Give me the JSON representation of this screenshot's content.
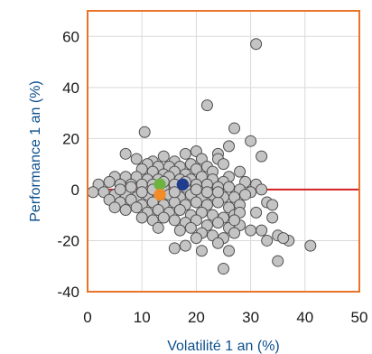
{
  "chart_data": {
    "type": "scatter",
    "xlabel": "Volatilité 1 an (%)",
    "ylabel": "Performance 1 an (%)",
    "xlim": [
      0,
      50
    ],
    "ylim": [
      -40,
      70
    ],
    "x_ticks": [
      "0",
      "10",
      "20",
      "30",
      "40",
      "50"
    ],
    "y_ticks": [
      "-40",
      "-20",
      "0",
      "20",
      "40",
      "60"
    ],
    "grid": true,
    "frame_color": "#e8742a",
    "zero_line_color": "#d22020",
    "series": [
      {
        "color": "#c4c4c4",
        "points": [
          [
            31,
            57
          ],
          [
            22,
            33
          ],
          [
            27,
            24
          ],
          [
            10.5,
            22.5
          ],
          [
            30,
            19
          ],
          [
            20,
            15
          ],
          [
            24,
            14
          ],
          [
            26,
            17
          ],
          [
            18,
            14
          ],
          [
            7,
            14
          ],
          [
            14,
            13
          ],
          [
            9,
            12
          ],
          [
            12,
            11
          ],
          [
            16,
            11
          ],
          [
            21,
            12
          ],
          [
            24,
            12
          ],
          [
            25,
            10
          ],
          [
            32,
            13
          ],
          [
            11,
            10
          ],
          [
            13,
            9
          ],
          [
            15,
            9
          ],
          [
            17,
            9
          ],
          [
            19,
            10
          ],
          [
            22,
            9
          ],
          [
            28,
            7
          ],
          [
            10,
            8
          ],
          [
            12,
            7
          ],
          [
            14,
            6
          ],
          [
            16,
            7
          ],
          [
            18,
            6
          ],
          [
            20,
            8
          ],
          [
            23,
            7
          ],
          [
            26,
            5
          ],
          [
            5,
            5
          ],
          [
            7,
            5
          ],
          [
            9,
            5
          ],
          [
            11,
            4
          ],
          [
            13,
            4
          ],
          [
            15,
            5
          ],
          [
            17,
            4
          ],
          [
            19,
            4
          ],
          [
            21,
            5
          ],
          [
            23,
            4
          ],
          [
            25,
            3
          ],
          [
            29,
            3
          ],
          [
            31,
            2
          ],
          [
            2,
            2
          ],
          [
            4,
            3
          ],
          [
            6,
            2
          ],
          [
            8,
            2
          ],
          [
            10,
            2
          ],
          [
            12,
            2
          ],
          [
            14,
            1
          ],
          [
            16,
            2
          ],
          [
            18,
            1
          ],
          [
            20,
            2
          ],
          [
            22,
            2
          ],
          [
            24,
            1
          ],
          [
            26,
            1
          ],
          [
            28,
            0
          ],
          [
            30,
            -1
          ],
          [
            32,
            0
          ],
          [
            1,
            -1
          ],
          [
            3,
            -1
          ],
          [
            5,
            -2
          ],
          [
            7,
            -2
          ],
          [
            9,
            -3
          ],
          [
            11,
            -2
          ],
          [
            13,
            -3
          ],
          [
            15,
            -2
          ],
          [
            17,
            -3
          ],
          [
            19,
            -2
          ],
          [
            21,
            -3
          ],
          [
            23,
            -2
          ],
          [
            25,
            -3
          ],
          [
            27,
            -3
          ],
          [
            29,
            -2
          ],
          [
            4,
            -4
          ],
          [
            6,
            -5
          ],
          [
            8,
            -4
          ],
          [
            10,
            -6
          ],
          [
            12,
            -5
          ],
          [
            14,
            -6
          ],
          [
            16,
            -5
          ],
          [
            18,
            -6
          ],
          [
            20,
            -5
          ],
          [
            22,
            -6
          ],
          [
            24,
            -5
          ],
          [
            26,
            -7
          ],
          [
            28,
            -6
          ],
          [
            33,
            -5
          ],
          [
            34,
            -6
          ],
          [
            5,
            -7
          ],
          [
            7,
            -8
          ],
          [
            9,
            -7
          ],
          [
            11,
            -9
          ],
          [
            13,
            -8
          ],
          [
            15,
            -9
          ],
          [
            17,
            -8
          ],
          [
            19,
            -10
          ],
          [
            21,
            -9
          ],
          [
            23,
            -10
          ],
          [
            25,
            -11
          ],
          [
            27,
            -10
          ],
          [
            31,
            -9
          ],
          [
            10,
            -11
          ],
          [
            12,
            -12
          ],
          [
            14,
            -11
          ],
          [
            16,
            -12
          ],
          [
            18,
            -13
          ],
          [
            20,
            -12
          ],
          [
            22,
            -14
          ],
          [
            24,
            -13
          ],
          [
            26,
            -15
          ],
          [
            28,
            -14
          ],
          [
            30,
            -16
          ],
          [
            34,
            -11
          ],
          [
            13,
            -15
          ],
          [
            17,
            -16
          ],
          [
            21,
            -17
          ],
          [
            23,
            -18
          ],
          [
            25,
            -19
          ],
          [
            27,
            -17
          ],
          [
            32,
            -16
          ],
          [
            35,
            -18
          ],
          [
            37,
            -20
          ],
          [
            20,
            -19
          ],
          [
            24,
            -21
          ],
          [
            33,
            -20
          ],
          [
            36,
            -19
          ],
          [
            41,
            -22
          ],
          [
            18,
            -22
          ],
          [
            21,
            -24
          ],
          [
            26,
            -24
          ],
          [
            16,
            -23
          ],
          [
            35,
            -28
          ],
          [
            25,
            -31
          ],
          [
            8,
            1
          ],
          [
            12,
            0
          ],
          [
            16,
            -1
          ],
          [
            20,
            0
          ],
          [
            24,
            -1
          ],
          [
            14,
            3
          ],
          [
            18,
            3
          ],
          [
            22,
            -1
          ],
          [
            10,
            -1
          ],
          [
            6,
            0
          ],
          [
            28,
            -9
          ],
          [
            27,
            -12
          ],
          [
            19,
            -15
          ]
        ]
      },
      {
        "color": "#6db33f",
        "points": [
          [
            13.3,
            2
          ]
        ]
      },
      {
        "color": "#f28c28",
        "points": [
          [
            13.3,
            -2
          ]
        ]
      },
      {
        "color": "#1f3c8f",
        "points": [
          [
            17.5,
            2
          ]
        ]
      }
    ]
  }
}
